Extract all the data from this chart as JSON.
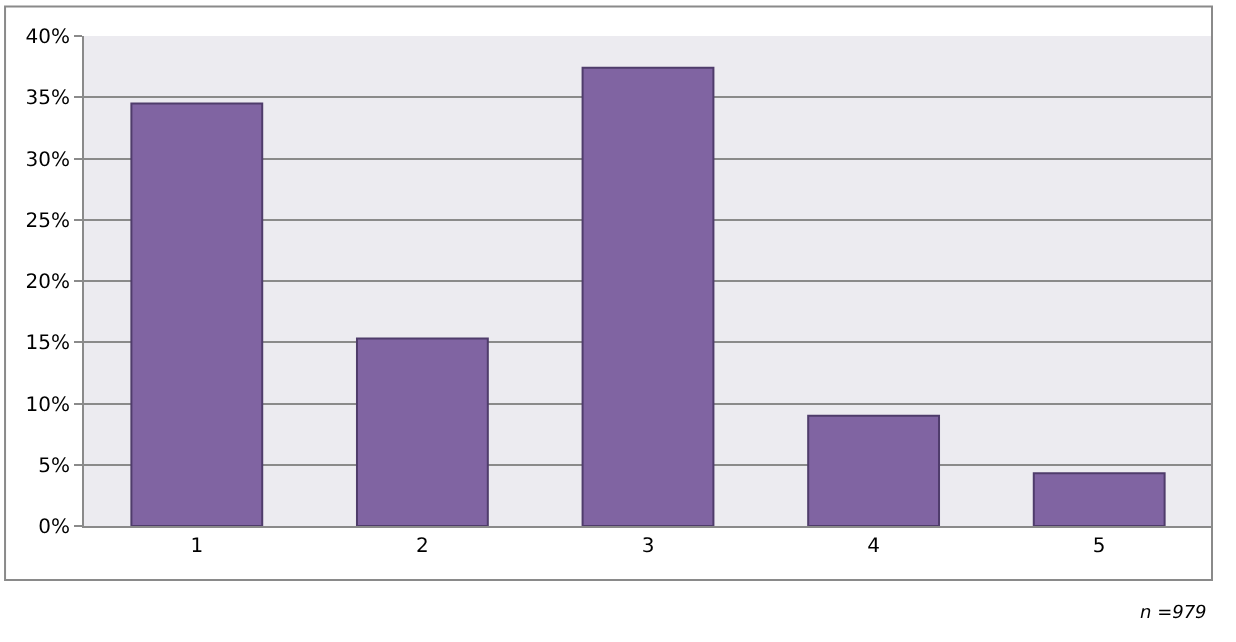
{
  "chart_data": {
    "type": "bar",
    "categories": [
      "1",
      "2",
      "3",
      "4",
      "5"
    ],
    "values": [
      34.5,
      15.3,
      37.4,
      9.0,
      4.3
    ],
    "color": "#8064a2",
    "ylim": [
      0,
      40
    ],
    "yticks": [
      {
        "value": 0,
        "label": "0%"
      },
      {
        "value": 5,
        "label": "5%"
      },
      {
        "value": 10,
        "label": "10%"
      },
      {
        "value": 15,
        "label": "15%"
      },
      {
        "value": 20,
        "label": "20%"
      },
      {
        "value": 25,
        "label": "25%"
      },
      {
        "value": 30,
        "label": "30%"
      },
      {
        "value": 35,
        "label": "35%"
      },
      {
        "value": 40,
        "label": "40%"
      }
    ],
    "grid": "y",
    "annotations": [
      "n =979"
    ]
  }
}
